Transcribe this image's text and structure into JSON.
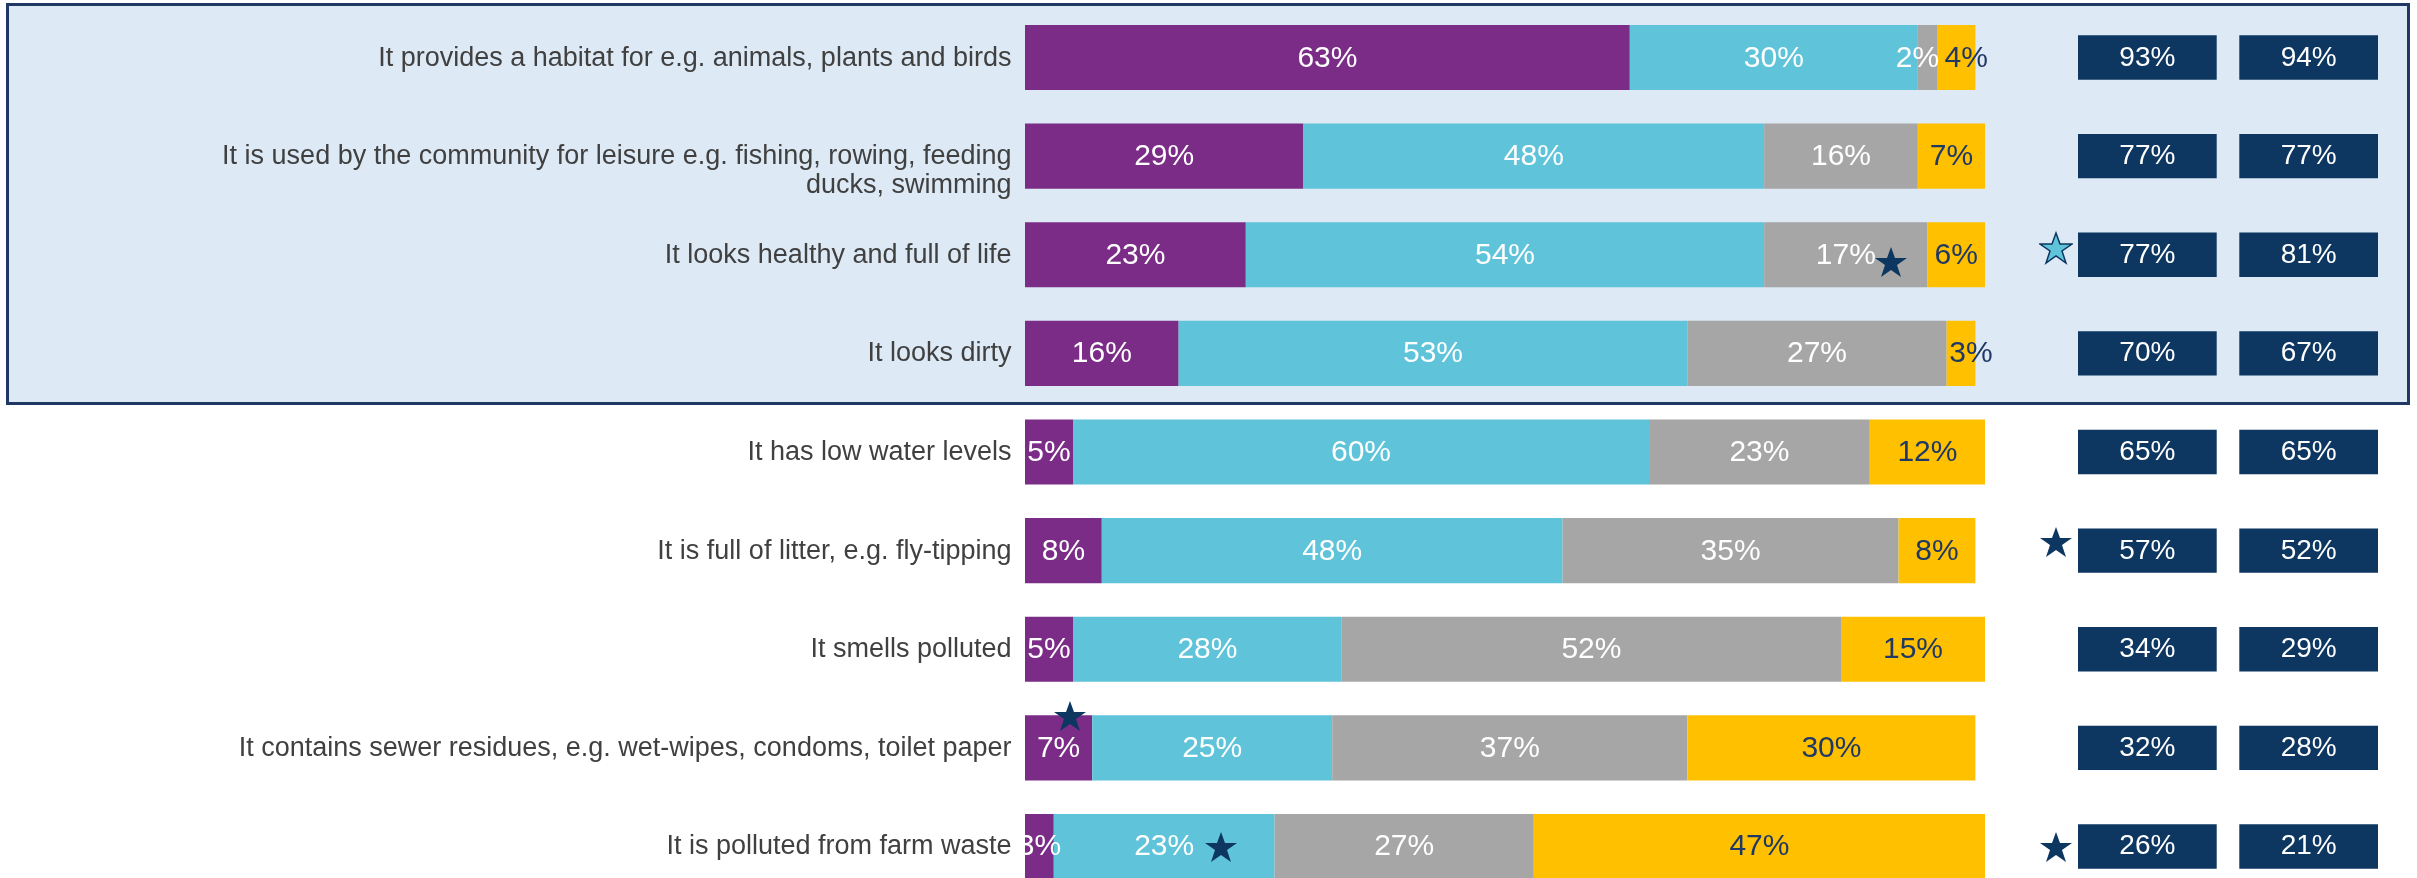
{
  "chart_data": {
    "type": "bar",
    "orientation": "horizontal",
    "stacked": true,
    "grid": false,
    "tick_labels": "y",
    "categories": [
      "It provides a habitat for e.g. animals, plants and birds",
      "It is used by the community for leisure e.g. fishing, rowing, feeding ducks, swimming",
      "It looks healthy and full of life",
      "It looks dirty",
      "It has low water levels",
      "It is full of litter, e.g. fly-tipping",
      "It smells polluted",
      "It contains sewer residues, e.g. wet-wipes, condoms, toilet paper",
      "It is polluted from farm waste"
    ],
    "series": [
      {
        "color": "#7b2c87",
        "values": [
          63,
          29,
          23,
          16,
          5,
          8,
          5,
          7,
          3
        ],
        "value_labels": [
          "63%",
          "29%",
          "23%",
          "16%",
          "5%",
          "8%",
          "5%",
          "7%",
          "3%"
        ]
      },
      {
        "color": "#5fc3d9",
        "values": [
          30,
          48,
          54,
          53,
          60,
          48,
          28,
          25,
          23
        ],
        "value_labels": [
          "30%",
          "48%",
          "54%",
          "53%",
          "60%",
          "48%",
          "28%",
          "25%",
          "23%"
        ]
      },
      {
        "color": "#a6a6a6",
        "values": [
          2,
          16,
          17,
          27,
          23,
          35,
          52,
          37,
          27
        ],
        "value_labels": [
          "2%",
          "16%",
          "17%",
          "27%",
          "23%",
          "35%",
          "52%",
          "37%",
          "27%"
        ]
      },
      {
        "color": "#ffc000",
        "values": [
          4,
          7,
          6,
          3,
          12,
          8,
          15,
          30,
          47
        ],
        "value_labels": [
          "4%",
          "7%",
          "6%",
          "3%",
          "12%",
          "8%",
          "15%",
          "30%",
          "47%"
        ]
      }
    ],
    "bands": [
      {
        "axis": "y",
        "from": "It provides a habitat for e.g. animals, plants and birds",
        "to": "It looks dirty",
        "color": "#dde9f5"
      }
    ],
    "annotations": [
      "93%",
      "94%",
      "77%",
      "77%",
      "77%",
      "81%",
      "70%",
      "67%",
      "65%",
      "65%",
      "57%",
      "52%",
      "34%",
      "29%",
      "32%",
      "28%",
      "26%",
      "21%"
    ]
  }
}
